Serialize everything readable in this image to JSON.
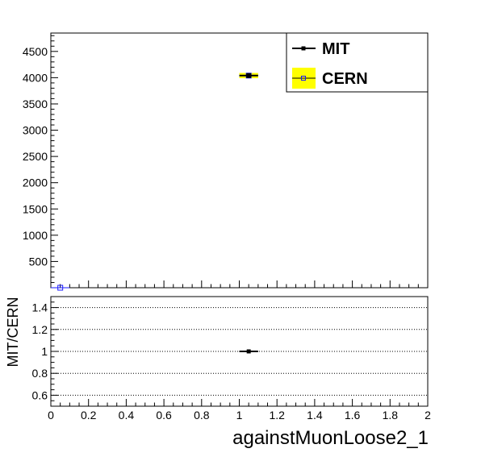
{
  "chart_data": [
    {
      "type": "scatter",
      "panel": "main",
      "xlim": [
        0,
        2
      ],
      "ylim": [
        0,
        4850
      ],
      "yticks": [
        500,
        1000,
        1500,
        2000,
        2500,
        3000,
        3500,
        4000,
        4500
      ],
      "ytick_labels": [
        "500",
        "1000",
        "1500",
        "2000",
        "2500",
        "3000",
        "3500",
        "4000",
        "4500"
      ],
      "grid": false,
      "legend": {
        "placement": "top-right"
      },
      "series": [
        {
          "name": "MIT",
          "style": "black line with filled square markers",
          "color": "#000000",
          "points": [
            {
              "x": 1.05,
              "y": 4040,
              "xerr": 0.05
            }
          ]
        },
        {
          "name": "CERN",
          "style": "open blue square markers, yellow uncertainty band",
          "color": "#1a1aff",
          "band_color": "#ffff00",
          "points": [
            {
              "x": 0.05,
              "y": 0,
              "xerr": 0.05
            },
            {
              "x": 1.05,
              "y": 4040,
              "xerr": 0.05,
              "band": 50
            }
          ]
        }
      ]
    },
    {
      "type": "scatter",
      "panel": "ratio",
      "ylabel": "MIT/CERN",
      "xlabel": "againstMuonLoose2_1",
      "xlim": [
        0,
        2
      ],
      "ylim": [
        0.5,
        1.5
      ],
      "xticks": [
        0,
        0.2,
        0.4,
        0.6,
        0.8,
        1,
        1.2,
        1.4,
        1.6,
        1.8,
        2
      ],
      "xtick_labels": [
        "0",
        "0.2",
        "0.4",
        "0.6",
        "0.8",
        "1",
        "1.2",
        "1.4",
        "1.6",
        "1.8",
        "2"
      ],
      "yticks": [
        0.6,
        0.8,
        1,
        1.2,
        1.4
      ],
      "ytick_labels": [
        "0.6",
        "0.8",
        "1",
        "1.2",
        "1.4"
      ],
      "grid": true,
      "series": [
        {
          "name": "MIT/CERN",
          "color": "#000000",
          "points": [
            {
              "x": 1.05,
              "y": 1.0,
              "xerr": 0.05
            }
          ]
        }
      ]
    }
  ]
}
